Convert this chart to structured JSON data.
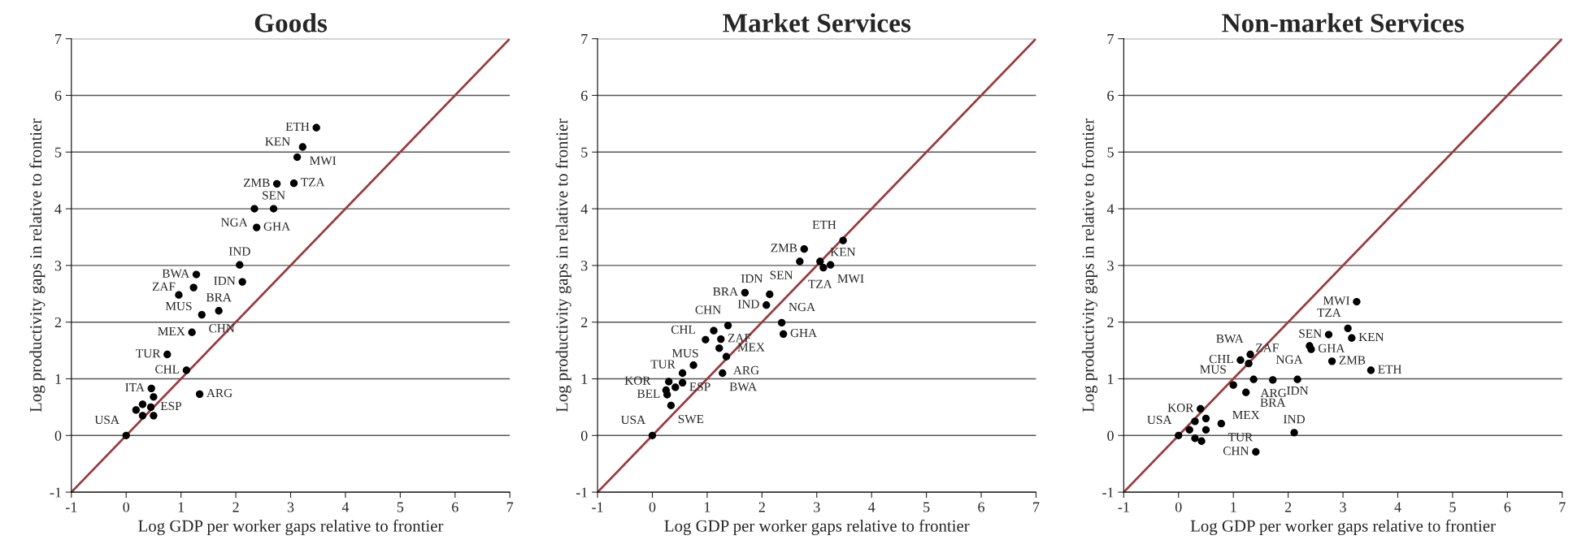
{
  "chart_data": [
    {
      "type": "scatter",
      "title": "Goods",
      "xlabel": "Log GDP per worker gaps relative to frontier",
      "ylabel": "Log productivity gaps in relative to frontier",
      "xlim": [
        -1,
        7
      ],
      "ylim": [
        -1,
        7
      ],
      "xticks": [
        -1,
        0,
        1,
        2,
        3,
        4,
        5,
        6,
        7
      ],
      "yticks": [
        -1,
        0,
        1,
        2,
        3,
        4,
        5,
        6,
        7
      ],
      "grid": "y",
      "series": [
        {
          "marker": "circle",
          "color": "#000000",
          "x": [
            3.47,
            3.22,
            3.12,
            3.06,
            2.75,
            2.69,
            2.34,
            2.38,
            2.07,
            2.12,
            1.28,
            1.23,
            0.96,
            1.69,
            1.38,
            1.2,
            0.75,
            1.1,
            1.34,
            0.0,
            0.46,
            0.5,
            0.3,
            0.45,
            0.3,
            0.5,
            0.18
          ],
          "values": [
            5.43,
            5.09,
            4.91,
            4.45,
            4.44,
            4.0,
            4.0,
            3.67,
            3.01,
            2.71,
            2.84,
            2.61,
            2.48,
            2.2,
            2.13,
            1.82,
            1.43,
            1.15,
            0.73,
            0.0,
            0.83,
            0.68,
            0.55,
            0.5,
            0.35,
            0.35,
            0.45
          ]
        },
        {
          "type": "line",
          "color": "#9b3b3f",
          "x": [
            -1,
            7
          ],
          "values": [
            -1,
            7
          ]
        }
      ],
      "annotations": [
        {
          "text": "ETH",
          "x": 3.47,
          "y": 5.43
        },
        {
          "text": "MWI",
          "x": 3.22,
          "y": 5.09
        },
        {
          "text": "KEN",
          "x": 3.12,
          "y": 4.91
        },
        {
          "text": "TZA",
          "x": 3.06,
          "y": 4.45
        },
        {
          "text": "ZMB",
          "x": 2.75,
          "y": 4.44
        },
        {
          "text": "SEN",
          "x": 2.69,
          "y": 4.0
        },
        {
          "text": "NGA",
          "x": 2.34,
          "y": 4.0
        },
        {
          "text": "GHA",
          "x": 2.38,
          "y": 3.67
        },
        {
          "text": "IND",
          "x": 2.07,
          "y": 3.01
        },
        {
          "text": "IDN",
          "x": 2.12,
          "y": 2.71
        },
        {
          "text": "BWA",
          "x": 1.28,
          "y": 2.84
        },
        {
          "text": "ZAF",
          "x": 1.23,
          "y": 2.61
        },
        {
          "text": "MUS",
          "x": 0.96,
          "y": 2.48
        },
        {
          "text": "BRA",
          "x": 1.69,
          "y": 2.2
        },
        {
          "text": "CHN",
          "x": 1.38,
          "y": 2.13
        },
        {
          "text": "MEX",
          "x": 1.2,
          "y": 1.82
        },
        {
          "text": "TUR",
          "x": 0.75,
          "y": 1.43
        },
        {
          "text": "CHL",
          "x": 1.1,
          "y": 1.15
        },
        {
          "text": "ARG",
          "x": 1.34,
          "y": 0.73
        },
        {
          "text": "USA",
          "x": 0.0,
          "y": 0.0
        },
        {
          "text": "ITA",
          "x": 0.46,
          "y": 0.83
        },
        {
          "text": "ESP",
          "x": 0.5,
          "y": 0.76
        }
      ]
    },
    {
      "type": "scatter",
      "title": "Market Services",
      "xlabel": "Log GDP per worker gaps relative to frontier",
      "ylabel": "Log productivity gaps in relative to frontier",
      "xlim": [
        -1,
        7
      ],
      "ylim": [
        -1,
        7
      ],
      "xticks": [
        -1,
        0,
        1,
        2,
        3,
        4,
        5,
        6,
        7
      ],
      "yticks": [
        -1,
        0,
        1,
        2,
        3,
        4,
        5,
        6,
        7
      ],
      "grid": "y",
      "series": [
        {
          "marker": "circle",
          "color": "#000000",
          "x": [
            3.48,
            2.77,
            2.69,
            3.06,
            3.25,
            3.12,
            1.69,
            2.14,
            2.08,
            2.36,
            2.39,
            1.38,
            1.12,
            0.97,
            1.25,
            1.22,
            1.35,
            0.75,
            1.28,
            0.27,
            0.34,
            0.0,
            0.55,
            0.3,
            0.42,
            0.55,
            0.25
          ],
          "values": [
            3.44,
            3.29,
            3.07,
            3.07,
            3.01,
            2.96,
            2.52,
            2.49,
            2.3,
            1.99,
            1.79,
            1.94,
            1.85,
            1.69,
            1.7,
            1.54,
            1.39,
            1.24,
            1.1,
            0.72,
            0.53,
            0.0,
            1.1,
            0.95,
            0.85,
            0.93,
            0.8
          ]
        },
        {
          "type": "line",
          "color": "#9b3b3f",
          "x": [
            -1,
            7
          ],
          "values": [
            -1,
            7
          ]
        }
      ],
      "annotations": [
        {
          "text": "ETH",
          "x": 3.48,
          "y": 3.44
        },
        {
          "text": "ZMB",
          "x": 2.77,
          "y": 3.29
        },
        {
          "text": "SEN",
          "x": 2.69,
          "y": 3.07
        },
        {
          "text": "TZA",
          "x": 3.06,
          "y": 3.07
        },
        {
          "text": "MWI",
          "x": 3.25,
          "y": 3.01
        },
        {
          "text": "KEN",
          "x": 3.12,
          "y": 2.96
        },
        {
          "text": "BRA",
          "x": 1.69,
          "y": 2.52
        },
        {
          "text": "IDN",
          "x": 2.14,
          "y": 2.49
        },
        {
          "text": "IND",
          "x": 2.08,
          "y": 2.3
        },
        {
          "text": "NGA",
          "x": 2.36,
          "y": 1.99
        },
        {
          "text": "GHA",
          "x": 2.39,
          "y": 1.79
        },
        {
          "text": "CHN",
          "x": 1.38,
          "y": 1.94
        },
        {
          "text": "CHL",
          "x": 1.12,
          "y": 1.85
        },
        {
          "text": "MUS",
          "x": 0.97,
          "y": 1.69
        },
        {
          "text": "ZAF",
          "x": 1.25,
          "y": 1.7
        },
        {
          "text": "MEX",
          "x": 1.22,
          "y": 1.54
        },
        {
          "text": "ARG",
          "x": 1.35,
          "y": 1.39
        },
        {
          "text": "TUR",
          "x": 0.75,
          "y": 1.24
        },
        {
          "text": "BWA",
          "x": 1.28,
          "y": 1.1
        },
        {
          "text": "BEL",
          "x": 0.27,
          "y": 0.72
        },
        {
          "text": "SWE",
          "x": 0.34,
          "y": 0.53
        },
        {
          "text": "USA",
          "x": 0.0,
          "y": 0.0
        },
        {
          "text": "ESP",
          "x": 0.55,
          "y": 1.1
        },
        {
          "text": "KOR",
          "x": 0.3,
          "y": 0.95
        }
      ]
    },
    {
      "type": "scatter",
      "title": "Non-market Services",
      "xlabel": "Log GDP per worker gaps relative to frontier",
      "ylabel": "Log productivity gaps in relative to frontier",
      "xlim": [
        -1,
        7
      ],
      "ylim": [
        -1,
        7
      ],
      "xticks": [
        -1,
        0,
        1,
        2,
        3,
        4,
        5,
        6,
        7
      ],
      "yticks": [
        -1,
        0,
        1,
        2,
        3,
        4,
        5,
        6,
        7
      ],
      "grid": "y",
      "series": [
        {
          "marker": "circle",
          "color": "#000000",
          "x": [
            3.25,
            3.09,
            3.16,
            2.74,
            2.39,
            2.42,
            2.8,
            3.51,
            2.17,
            1.72,
            1.37,
            1.0,
            1.23,
            1.31,
            1.28,
            1.13,
            1.41,
            2.11,
            0.78,
            0.4,
            0.0,
            0.3,
            0.5,
            0.2,
            0.5,
            0.3,
            0.42
          ],
          "values": [
            2.36,
            1.89,
            1.72,
            1.78,
            1.58,
            1.52,
            1.31,
            1.15,
            0.99,
            0.98,
            0.99,
            0.89,
            0.76,
            1.43,
            1.27,
            1.33,
            -0.29,
            0.05,
            0.21,
            0.47,
            0.0,
            0.25,
            0.3,
            0.1,
            0.1,
            -0.05,
            -0.1
          ]
        },
        {
          "type": "line",
          "color": "#9b3b3f",
          "x": [
            -1,
            7
          ],
          "values": [
            -1,
            7
          ]
        }
      ],
      "annotations": [
        {
          "text": "MWI",
          "x": 3.25,
          "y": 2.36
        },
        {
          "text": "TZA",
          "x": 3.09,
          "y": 1.89
        },
        {
          "text": "KEN",
          "x": 3.16,
          "y": 1.72
        },
        {
          "text": "SEN",
          "x": 2.74,
          "y": 1.78
        },
        {
          "text": "NGA",
          "x": 2.39,
          "y": 1.58
        },
        {
          "text": "GHA",
          "x": 2.42,
          "y": 1.52
        },
        {
          "text": "ZMB",
          "x": 2.8,
          "y": 1.31
        },
        {
          "text": "ETH",
          "x": 3.51,
          "y": 1.15
        },
        {
          "text": "IDN",
          "x": 2.17,
          "y": 0.99
        },
        {
          "text": "BRA",
          "x": 1.72,
          "y": 0.98
        },
        {
          "text": "ARG",
          "x": 1.37,
          "y": 0.99
        },
        {
          "text": "MUS",
          "x": 1.0,
          "y": 0.89
        },
        {
          "text": "MEX",
          "x": 1.23,
          "y": 0.76
        },
        {
          "text": "BWA",
          "x": 1.31,
          "y": 1.43
        },
        {
          "text": "ZAF",
          "x": 1.28,
          "y": 1.27
        },
        {
          "text": "CHL",
          "x": 1.13,
          "y": 1.33
        },
        {
          "text": "CHN",
          "x": 1.41,
          "y": -0.29
        },
        {
          "text": "IND",
          "x": 2.11,
          "y": 0.05
        },
        {
          "text": "TUR",
          "x": 0.78,
          "y": 0.21
        },
        {
          "text": "KOR",
          "x": 0.4,
          "y": 0.47
        },
        {
          "text": "USA",
          "x": 0.0,
          "y": 0.0
        }
      ]
    }
  ]
}
